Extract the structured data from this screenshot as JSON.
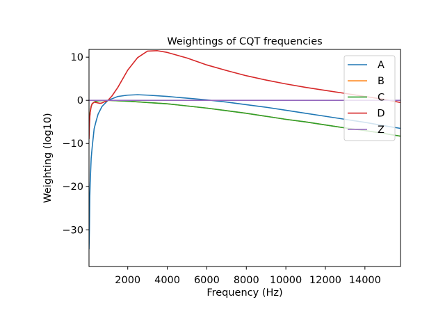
{
  "chart_data": {
    "type": "line",
    "title": "Weightings of CQT frequencies",
    "xlabel": "Frequency (Hz)",
    "ylabel": "Weighting (log10)",
    "xlim": [
      40,
      15800
    ],
    "ylim": [
      -38.5,
      11.8
    ],
    "xticks": [
      2000,
      4000,
      6000,
      8000,
      10000,
      12000,
      14000
    ],
    "xtick_labels": [
      "2000",
      "4000",
      "6000",
      "8000",
      "10000",
      "12000",
      "14000"
    ],
    "yticks": [
      10,
      0,
      -10,
      -20,
      -30
    ],
    "ytick_labels": [
      "10",
      "0",
      "−10",
      "−20",
      "−30"
    ],
    "grid": false,
    "legend_position": "top-right",
    "series": [
      {
        "name": "A",
        "color": "#1f77b4",
        "x": [
          40,
          60,
          80,
          100,
          150,
          200,
          300,
          400,
          500,
          700,
          1000,
          1500,
          2000,
          2500,
          3000,
          4000,
          5000,
          6000,
          7000,
          8000,
          9000,
          10000,
          11000,
          12000,
          13000,
          14000,
          15000,
          15800
        ],
        "y": [
          -34.5,
          -30.2,
          -22.5,
          -19.1,
          -13.4,
          -10.9,
          -6.6,
          -4.8,
          -3.2,
          -1.4,
          0.0,
          0.9,
          1.2,
          1.3,
          1.2,
          0.9,
          0.5,
          0.1,
          -0.4,
          -1.0,
          -1.6,
          -2.3,
          -3.0,
          -3.7,
          -4.4,
          -5.1,
          -5.9,
          -6.5
        ]
      },
      {
        "name": "B",
        "color": "#ff7f0e",
        "x": [
          40,
          60,
          80,
          100,
          150,
          200,
          300,
          400,
          500,
          700,
          1000,
          1500,
          2000,
          3000,
          4000,
          5000,
          6000,
          7000,
          8000,
          9000,
          10000,
          11000,
          12000,
          13000,
          14000,
          15000,
          15800
        ],
        "y": [
          -7.0,
          -5.0,
          -3.6,
          -2.6,
          -1.4,
          -0.8,
          -0.4,
          -0.2,
          -0.1,
          -0.05,
          0.0,
          -0.1,
          -0.2,
          -0.5,
          -0.8,
          -1.3,
          -1.8,
          -2.4,
          -3.0,
          -3.7,
          -4.4,
          -5.0,
          -5.7,
          -6.4,
          -7.0,
          -7.7,
          -8.3
        ]
      },
      {
        "name": "C",
        "color": "#2ca02c",
        "x": [
          40,
          60,
          80,
          100,
          150,
          200,
          300,
          400,
          500,
          700,
          1000,
          1500,
          2000,
          3000,
          4000,
          5000,
          6000,
          7000,
          8000,
          9000,
          10000,
          11000,
          12000,
          13000,
          14000,
          15000,
          15800
        ],
        "y": [
          -7.0,
          -5.0,
          -3.6,
          -2.6,
          -1.4,
          -0.8,
          -0.4,
          -0.2,
          -0.1,
          -0.05,
          0.0,
          -0.1,
          -0.2,
          -0.5,
          -0.8,
          -1.3,
          -1.8,
          -2.4,
          -3.0,
          -3.7,
          -4.4,
          -5.0,
          -5.7,
          -6.4,
          -7.0,
          -7.7,
          -8.3
        ]
      },
      {
        "name": "D",
        "color": "#d62728",
        "x": [
          40,
          60,
          80,
          100,
          150,
          200,
          300,
          400,
          500,
          600,
          700,
          800,
          900,
          1000,
          1200,
          1500,
          2000,
          2500,
          3000,
          3500,
          4000,
          5000,
          6000,
          7000,
          8000,
          9000,
          10000,
          11000,
          12000,
          13000,
          14000,
          15000,
          15800
        ],
        "y": [
          -9.0,
          -6.0,
          -4.0,
          -2.8,
          -1.4,
          -0.8,
          -0.4,
          -0.5,
          -0.6,
          -0.7,
          -0.6,
          -0.4,
          -0.2,
          0.0,
          1.0,
          3.0,
          7.0,
          9.9,
          11.4,
          11.5,
          11.1,
          9.8,
          8.2,
          6.9,
          5.7,
          4.7,
          3.8,
          3.0,
          2.3,
          1.6,
          0.9,
          0.2,
          -0.5
        ]
      },
      {
        "name": "Z",
        "color": "#9467bd",
        "x": [
          40,
          15800
        ],
        "y": [
          0,
          0
        ]
      }
    ]
  }
}
